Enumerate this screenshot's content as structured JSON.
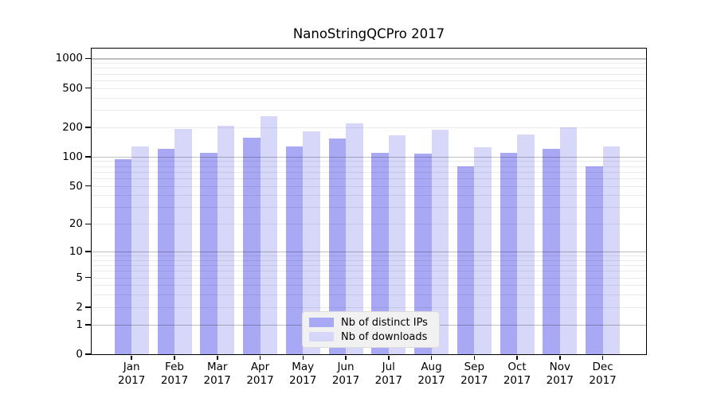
{
  "title": "NanoStringQCPro 2017",
  "legend": {
    "items": [
      {
        "label": "Nb of distinct IPs",
        "color": "#a8a8f4"
      },
      {
        "label": "Nb of downloads",
        "color": "#d7d7f9"
      }
    ]
  },
  "chart_data": {
    "type": "bar",
    "title": "NanoStringQCPro 2017",
    "categories": [
      "Jan 2017",
      "Feb 2017",
      "Mar 2017",
      "Apr 2017",
      "May 2017",
      "Jun 2017",
      "Jul 2017",
      "Aug 2017",
      "Sep 2017",
      "Oct 2017",
      "Nov 2017",
      "Dec 2017"
    ],
    "series": [
      {
        "name": "Nb of distinct IPs",
        "color": "#a8a8f4",
        "values": [
          95,
          121,
          110,
          155,
          127,
          153,
          109,
          107,
          80,
          109,
          121,
          79
        ]
      },
      {
        "name": "Nb of downloads",
        "color": "#d7d7f9",
        "values": [
          127,
          193,
          208,
          260,
          181,
          217,
          164,
          189,
          124,
          168,
          200,
          127
        ]
      }
    ],
    "yscale": "log1p",
    "yticks": [
      0,
      1,
      2,
      5,
      10,
      20,
      50,
      100,
      200,
      500,
      1000
    ],
    "ylim": [
      0,
      1259
    ],
    "grid": true,
    "legend_position": "inside-bottom-center"
  }
}
